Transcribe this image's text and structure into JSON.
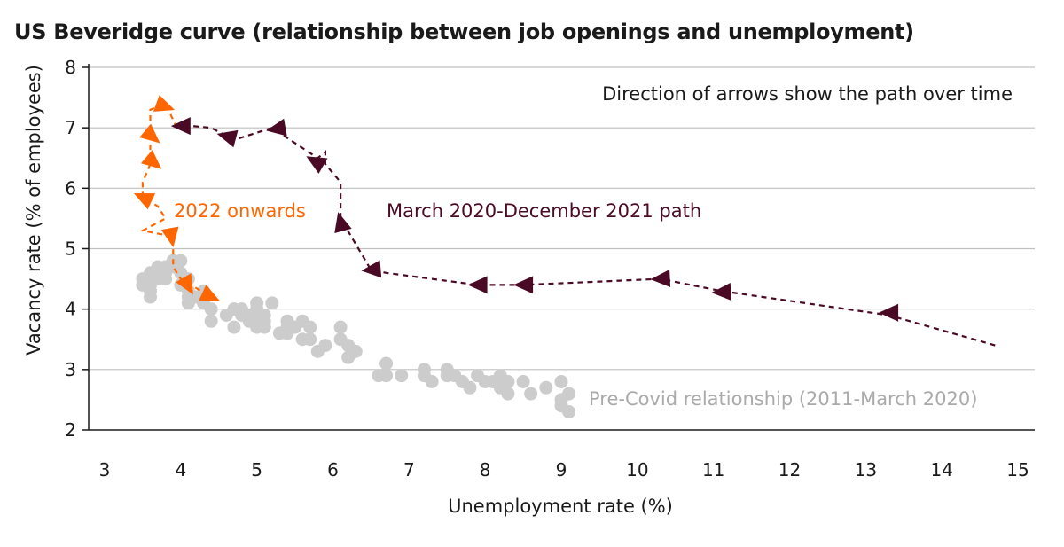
{
  "chart_data": {
    "type": "scatter",
    "title": "US Beveridge curve (relationship between job openings and unemployment)",
    "xlabel": "Unemployment rate (%)",
    "ylabel": "Vacancy rate (% of employees)",
    "xlim": [
      3,
      15
    ],
    "ylim": [
      2,
      8
    ],
    "xticks": [
      "3",
      "4",
      "5",
      "6",
      "7",
      "8",
      "9",
      "10",
      "11",
      "12",
      "13",
      "14",
      "15"
    ],
    "yticks": [
      "2",
      "3",
      "4",
      "5",
      "6",
      "7",
      "8"
    ],
    "grid": "horizontal",
    "colors": {
      "pre_covid": "#cccccc",
      "covid_path": "#4a0a25",
      "onwards": "#ff6600"
    },
    "annotations": {
      "direction_note": "Direction of arrows show the path over time",
      "covid_path_label": "March 2020-December 2021 path",
      "onwards_label": "2022 onwards",
      "pre_covid_label": "Pre-Covid relationship (2011-March 2020)"
    },
    "series": [
      {
        "key": "pre_covid",
        "points": [
          [
            3.5,
            4.5
          ],
          [
            3.5,
            4.4
          ],
          [
            3.6,
            4.3
          ],
          [
            3.6,
            4.2
          ],
          [
            3.6,
            4.4
          ],
          [
            3.6,
            4.6
          ],
          [
            3.7,
            4.5
          ],
          [
            3.7,
            4.6
          ],
          [
            3.7,
            4.7
          ],
          [
            3.8,
            4.6
          ],
          [
            3.8,
            4.5
          ],
          [
            3.8,
            4.7
          ],
          [
            3.9,
            4.8
          ],
          [
            3.9,
            4.7
          ],
          [
            4.0,
            4.8
          ],
          [
            4.0,
            4.6
          ],
          [
            4.0,
            4.4
          ],
          [
            4.1,
            4.5
          ],
          [
            4.1,
            4.3
          ],
          [
            4.1,
            4.2
          ],
          [
            4.1,
            4.1
          ],
          [
            4.2,
            4.2
          ],
          [
            4.3,
            4.3
          ],
          [
            4.3,
            4.1
          ],
          [
            4.4,
            4.0
          ],
          [
            4.4,
            3.8
          ],
          [
            4.6,
            3.9
          ],
          [
            4.7,
            4.0
          ],
          [
            4.7,
            3.7
          ],
          [
            4.8,
            3.9
          ],
          [
            4.8,
            4.0
          ],
          [
            4.9,
            3.8
          ],
          [
            4.9,
            3.9
          ],
          [
            5.0,
            3.7
          ],
          [
            5.0,
            3.8
          ],
          [
            5.0,
            4.0
          ],
          [
            5.0,
            4.1
          ],
          [
            5.1,
            3.9
          ],
          [
            5.1,
            3.7
          ],
          [
            5.1,
            3.8
          ],
          [
            5.2,
            4.1
          ],
          [
            5.3,
            3.6
          ],
          [
            5.4,
            3.6
          ],
          [
            5.4,
            3.7
          ],
          [
            5.4,
            3.8
          ],
          [
            5.5,
            3.7
          ],
          [
            5.6,
            3.8
          ],
          [
            5.6,
            3.5
          ],
          [
            5.7,
            3.5
          ],
          [
            5.7,
            3.7
          ],
          [
            5.8,
            3.3
          ],
          [
            5.9,
            3.4
          ],
          [
            6.1,
            3.7
          ],
          [
            6.1,
            3.5
          ],
          [
            6.2,
            3.4
          ],
          [
            6.2,
            3.2
          ],
          [
            6.3,
            3.3
          ],
          [
            6.6,
            2.9
          ],
          [
            6.7,
            3.1
          ],
          [
            6.7,
            2.9
          ],
          [
            6.9,
            2.9
          ],
          [
            7.2,
            3.0
          ],
          [
            7.2,
            2.9
          ],
          [
            7.3,
            2.8
          ],
          [
            7.5,
            3.0
          ],
          [
            7.5,
            2.9
          ],
          [
            7.6,
            2.9
          ],
          [
            7.7,
            2.8
          ],
          [
            7.8,
            2.7
          ],
          [
            7.9,
            2.9
          ],
          [
            8.0,
            2.8
          ],
          [
            8.1,
            2.8
          ],
          [
            8.2,
            2.9
          ],
          [
            8.2,
            2.7
          ],
          [
            8.3,
            2.8
          ],
          [
            8.3,
            2.6
          ],
          [
            8.5,
            2.8
          ],
          [
            8.6,
            2.6
          ],
          [
            8.8,
            2.7
          ],
          [
            9.0,
            2.8
          ],
          [
            9.0,
            2.5
          ],
          [
            9.0,
            2.4
          ],
          [
            9.1,
            2.6
          ],
          [
            9.1,
            2.3
          ]
        ]
      },
      {
        "key": "covid_path",
        "dashed": true,
        "path": [
          [
            14.7,
            3.4
          ],
          [
            13.3,
            3.9
          ],
          [
            11.1,
            4.3
          ],
          [
            10.3,
            4.5
          ],
          [
            8.5,
            4.4
          ],
          [
            7.9,
            4.4
          ],
          [
            6.7,
            4.6
          ],
          [
            6.5,
            4.65
          ],
          [
            6.1,
            5.5
          ],
          [
            6.1,
            6.1
          ],
          [
            5.9,
            6.4
          ],
          [
            5.9,
            6.6
          ],
          [
            5.8,
            6.5
          ],
          [
            5.2,
            7.0
          ],
          [
            4.7,
            6.8
          ],
          [
            4.4,
            7.0
          ],
          [
            4.0,
            7.05
          ]
        ],
        "arrows": [
          [
            13.3,
            3.94,
            180
          ],
          [
            11.1,
            4.28,
            177
          ],
          [
            10.3,
            4.5,
            177
          ],
          [
            8.5,
            4.4,
            180
          ],
          [
            7.9,
            4.4,
            180
          ],
          [
            6.5,
            4.65,
            175
          ],
          [
            6.1,
            5.45,
            255
          ],
          [
            5.76,
            6.45,
            210
          ],
          [
            5.25,
            6.98,
            170
          ],
          [
            4.6,
            6.86,
            195
          ],
          [
            4.0,
            7.03,
            180
          ]
        ]
      },
      {
        "key": "onwards",
        "dashed": true,
        "path": [
          [
            3.95,
            7.0
          ],
          [
            3.8,
            7.4
          ],
          [
            3.6,
            7.3
          ],
          [
            3.6,
            6.8
          ],
          [
            3.6,
            6.4
          ],
          [
            3.5,
            6.1
          ],
          [
            3.5,
            5.85
          ],
          [
            3.7,
            5.7
          ],
          [
            3.8,
            5.5
          ],
          [
            3.5,
            5.3
          ],
          [
            3.9,
            5.2
          ],
          [
            3.9,
            4.7
          ],
          [
            4.0,
            4.5
          ],
          [
            4.2,
            4.35
          ],
          [
            4.4,
            4.2
          ]
        ],
        "arrows": [
          [
            3.8,
            7.35,
            20
          ],
          [
            3.63,
            6.85,
            40
          ],
          [
            3.65,
            6.42,
            40
          ],
          [
            3.5,
            5.85,
            205
          ],
          [
            3.88,
            5.18,
            80
          ],
          [
            4.1,
            4.38,
            60
          ],
          [
            4.4,
            4.2,
            25
          ]
        ]
      }
    ]
  }
}
